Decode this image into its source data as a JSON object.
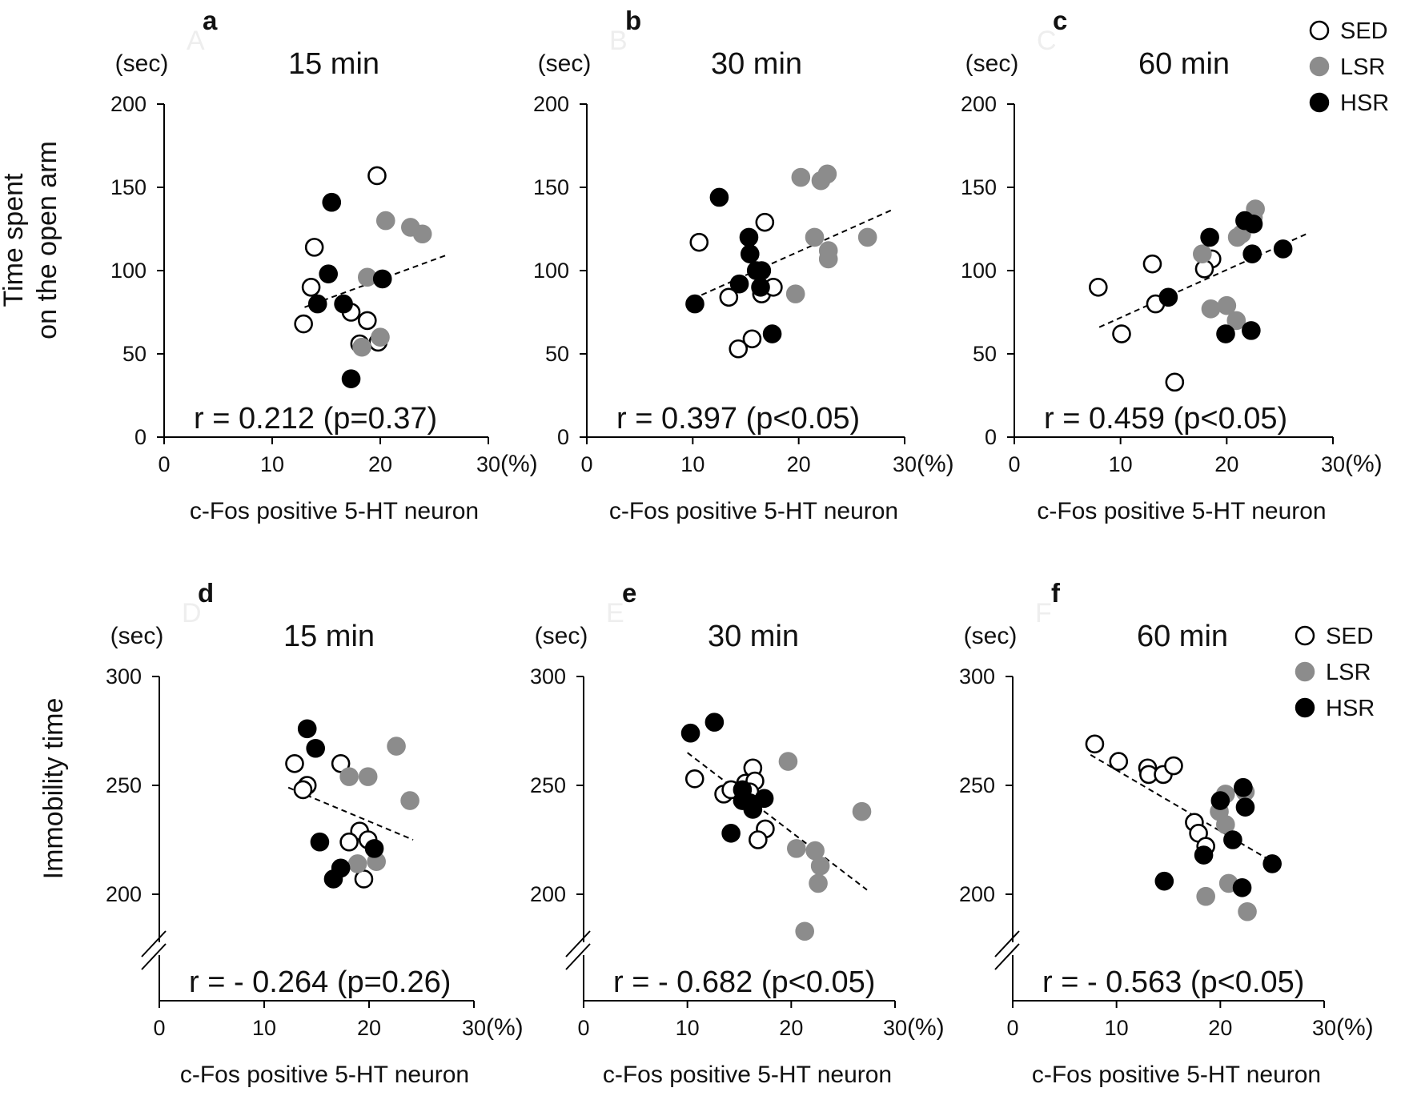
{
  "figure": {
    "y_labels": {
      "top": [
        "Time spent",
        "on the open arm"
      ],
      "bottom": "Immobility   time"
    },
    "legend": [
      {
        "name": "SED",
        "fill": "#ffffff",
        "stroke": "#000000"
      },
      {
        "name": "LSR",
        "fill": "#8c8c8c",
        "stroke": "#8c8c8c"
      },
      {
        "name": "HSR",
        "fill": "#000000",
        "stroke": "#000000"
      }
    ]
  },
  "colors": {
    "SED": "#ffffff",
    "LSR": "#8c8c8c",
    "HSR": "#000000",
    "axis": "#000000"
  },
  "chart_data": [
    {
      "type": "scatter",
      "label": "a",
      "ghost_label": "A",
      "title": "15 min",
      "yunit": "(sec)",
      "xunit": "(%)",
      "xlabel": "c-Fos positive 5-HT neuron",
      "xlim": [
        0,
        30
      ],
      "ylim": [
        0,
        200
      ],
      "xticks": [
        0,
        10,
        20,
        30
      ],
      "yticks": [
        0,
        50,
        100,
        150,
        200
      ],
      "axis_break": false,
      "annotation": "r = 0.212 (p=0.37)",
      "trendline": {
        "x": [
          13,
          26
        ],
        "y": [
          78,
          109
        ]
      },
      "series": [
        {
          "group": "SED",
          "points": [
            [
              19.7,
              157
            ],
            [
              13.9,
              114
            ],
            [
              13.6,
              90
            ],
            [
              12.9,
              68
            ],
            [
              17.3,
              75
            ],
            [
              18.8,
              70
            ],
            [
              18.1,
              56
            ],
            [
              19.8,
              57
            ]
          ]
        },
        {
          "group": "LSR",
          "points": [
            [
              20.5,
              130
            ],
            [
              22.8,
              126
            ],
            [
              23.9,
              122
            ],
            [
              18.8,
              96
            ],
            [
              18.3,
              54
            ],
            [
              20.0,
              60
            ]
          ]
        },
        {
          "group": "HSR",
          "points": [
            [
              15.5,
              141
            ],
            [
              15.2,
              98
            ],
            [
              20.2,
              95
            ],
            [
              14.2,
              80
            ],
            [
              16.6,
              80
            ],
            [
              17.3,
              35
            ]
          ]
        }
      ]
    },
    {
      "type": "scatter",
      "label": "b",
      "ghost_label": "B",
      "title": "30 min",
      "yunit": "(sec)",
      "xunit": "(%)",
      "xlabel": "c-Fos positive 5-HT neuron",
      "xlim": [
        0,
        30
      ],
      "ylim": [
        0,
        200
      ],
      "xticks": [
        0,
        10,
        20,
        30
      ],
      "yticks": [
        0,
        50,
        100,
        150,
        200
      ],
      "axis_break": false,
      "annotation": "r = 0.397 (p<0.05)",
      "trendline": {
        "x": [
          10,
          29
        ],
        "y": [
          83,
          137
        ]
      },
      "series": [
        {
          "group": "SED",
          "points": [
            [
              10.6,
              117
            ],
            [
              16.8,
              129
            ],
            [
              13.4,
              84
            ],
            [
              16.5,
              86
            ],
            [
              17.6,
              90
            ],
            [
              15.6,
              59
            ],
            [
              14.3,
              53
            ]
          ]
        },
        {
          "group": "LSR",
          "points": [
            [
              20.2,
              156
            ],
            [
              22.1,
              154
            ],
            [
              22.7,
              158
            ],
            [
              21.5,
              120
            ],
            [
              26.5,
              120
            ],
            [
              22.8,
              112
            ],
            [
              22.8,
              107
            ],
            [
              19.7,
              86
            ]
          ]
        },
        {
          "group": "HSR",
          "points": [
            [
              12.5,
              144
            ],
            [
              15.3,
              120
            ],
            [
              15.4,
              110
            ],
            [
              16.0,
              100
            ],
            [
              16.5,
              100
            ],
            [
              14.4,
              92
            ],
            [
              16.4,
              90
            ],
            [
              10.2,
              80
            ],
            [
              17.5,
              62
            ]
          ]
        }
      ]
    },
    {
      "type": "scatter",
      "label": "c",
      "ghost_label": "C",
      "title": "60 min",
      "yunit": "(sec)",
      "xunit": "(%)",
      "xlabel": "c-Fos positive 5-HT neuron",
      "xlim": [
        0,
        30
      ],
      "ylim": [
        0,
        200
      ],
      "xticks": [
        0,
        10,
        20,
        30
      ],
      "yticks": [
        0,
        50,
        100,
        150,
        200
      ],
      "axis_break": false,
      "annotation": "r = 0.459 (p<0.05)",
      "trendline": {
        "x": [
          8,
          27.5
        ],
        "y": [
          66,
          122
        ]
      },
      "series": [
        {
          "group": "SED",
          "points": [
            [
              7.9,
              90
            ],
            [
              13.0,
              104
            ],
            [
              13.3,
              80
            ],
            [
              10.1,
              62
            ],
            [
              18.6,
              107
            ],
            [
              17.9,
              101
            ],
            [
              15.1,
              33
            ]
          ]
        },
        {
          "group": "LSR",
          "points": [
            [
              22.7,
              137
            ],
            [
              22.5,
              132
            ],
            [
              21.4,
              122
            ],
            [
              17.7,
              110
            ],
            [
              20.0,
              79
            ],
            [
              20.9,
              70
            ],
            [
              18.5,
              77
            ],
            [
              21.0,
              120
            ]
          ]
        },
        {
          "group": "HSR",
          "points": [
            [
              21.7,
              130
            ],
            [
              22.5,
              128
            ],
            [
              18.4,
              120
            ],
            [
              22.4,
              110
            ],
            [
              25.3,
              113
            ],
            [
              14.5,
              84
            ],
            [
              19.9,
              62
            ],
            [
              22.3,
              64
            ]
          ]
        }
      ]
    },
    {
      "type": "scatter",
      "label": "d",
      "ghost_label": "D",
      "title": "15 min",
      "yunit": "(sec)",
      "xunit": "(%)",
      "xlabel": "c-Fos positive 5-HT neuron",
      "xlim": [
        0,
        30
      ],
      "ylim": [
        150,
        300
      ],
      "xticks": [
        0,
        10,
        20,
        30
      ],
      "yticks": [
        200,
        250,
        300
      ],
      "axis_break": true,
      "annotation": "r = - 0.264 (p=0.26)",
      "trendline": {
        "x": [
          12.3,
          24.2
        ],
        "y": [
          249,
          225
        ]
      },
      "series": [
        {
          "group": "SED",
          "points": [
            [
              12.9,
              260
            ],
            [
              14.1,
              250
            ],
            [
              13.7,
              248
            ],
            [
              17.3,
              260
            ],
            [
              19.1,
              229
            ],
            [
              18.1,
              224
            ],
            [
              19.9,
              225
            ],
            [
              19.5,
              207
            ]
          ]
        },
        {
          "group": "LSR",
          "points": [
            [
              22.6,
              268
            ],
            [
              18.1,
              254
            ],
            [
              19.9,
              254
            ],
            [
              23.9,
              243
            ],
            [
              18.9,
              214
            ],
            [
              20.7,
              215
            ]
          ]
        },
        {
          "group": "HSR",
          "points": [
            [
              14.1,
              276
            ],
            [
              14.9,
              267
            ],
            [
              15.3,
              224
            ],
            [
              20.5,
              221
            ],
            [
              17.3,
              212
            ],
            [
              16.6,
              207
            ]
          ]
        }
      ]
    },
    {
      "type": "scatter",
      "label": "e",
      "ghost_label": "E",
      "title": "30 min",
      "yunit": "(sec)",
      "xunit": "(%)",
      "xlabel": "c-Fos positive 5-HT neuron",
      "xlim": [
        0,
        30
      ],
      "ylim": [
        150,
        300
      ],
      "xticks": [
        0,
        10,
        20,
        30
      ],
      "yticks": [
        200,
        250,
        300
      ],
      "axis_break": true,
      "annotation": "r = - 0.682 (p<0.05)",
      "trendline": {
        "x": [
          10,
          27.3
        ],
        "y": [
          265,
          202
        ]
      },
      "series": [
        {
          "group": "SED",
          "points": [
            [
              10.7,
              253
            ],
            [
              13.5,
              246
            ],
            [
              14.2,
              248
            ],
            [
              15.6,
              251
            ],
            [
              16.3,
              258
            ],
            [
              16.5,
              252
            ],
            [
              16.0,
              247
            ],
            [
              17.5,
              230
            ],
            [
              16.8,
              225
            ]
          ]
        },
        {
          "group": "LSR",
          "points": [
            [
              19.7,
              261
            ],
            [
              26.8,
              238
            ],
            [
              20.5,
              221
            ],
            [
              22.3,
              220
            ],
            [
              22.8,
              213
            ],
            [
              22.6,
              205
            ],
            [
              21.3,
              183
            ]
          ]
        },
        {
          "group": "HSR",
          "points": [
            [
              10.3,
              274
            ],
            [
              12.6,
              279
            ],
            [
              15.3,
              248
            ],
            [
              15.3,
              243
            ],
            [
              16.0,
              242
            ],
            [
              17.4,
              244
            ],
            [
              16.3,
              239
            ],
            [
              14.2,
              228
            ]
          ]
        }
      ]
    },
    {
      "type": "scatter",
      "label": "f",
      "ghost_label": "F",
      "title": "60 min",
      "yunit": "(sec)",
      "xunit": "(%)",
      "xlabel": "c-Fos positive 5-HT neuron",
      "xlim": [
        0,
        30
      ],
      "ylim": [
        150,
        300
      ],
      "xticks": [
        0,
        10,
        20,
        30
      ],
      "yticks": [
        200,
        250,
        300
      ],
      "axis_break": true,
      "annotation": "r = - 0.563 (p<0.05)",
      "trendline": {
        "x": [
          7.5,
          25
        ],
        "y": [
          264,
          215
        ]
      },
      "series": [
        {
          "group": "SED",
          "points": [
            [
              7.9,
              269
            ],
            [
              10.2,
              261
            ],
            [
              13.0,
              258
            ],
            [
              13.1,
              255
            ],
            [
              14.5,
              255
            ],
            [
              15.5,
              259
            ],
            [
              17.5,
              233
            ],
            [
              17.9,
              228
            ],
            [
              18.6,
              222
            ]
          ]
        },
        {
          "group": "LSR",
          "points": [
            [
              20.5,
              246
            ],
            [
              22.4,
              247
            ],
            [
              19.9,
              238
            ],
            [
              20.5,
              232
            ],
            [
              20.8,
              205
            ],
            [
              18.6,
              199
            ],
            [
              22.6,
              192
            ]
          ]
        },
        {
          "group": "HSR",
          "points": [
            [
              20.0,
              243
            ],
            [
              22.2,
              249
            ],
            [
              22.4,
              240
            ],
            [
              21.2,
              225
            ],
            [
              18.4,
              218
            ],
            [
              25.0,
              214
            ],
            [
              14.6,
              206
            ],
            [
              22.1,
              203
            ]
          ]
        }
      ]
    }
  ]
}
